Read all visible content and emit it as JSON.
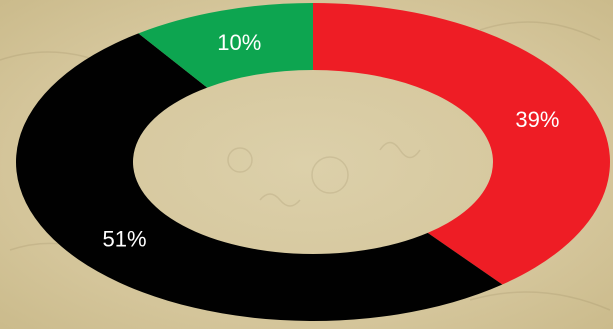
{
  "chart_data": {
    "type": "pie",
    "style": "donut",
    "categories": [
      "",
      "",
      ""
    ],
    "values": [
      39,
      51,
      10
    ],
    "labels": [
      "39%",
      "51%",
      "10%"
    ],
    "colors": [
      "#ee1d25",
      "#010101",
      "#0da550"
    ],
    "title": "",
    "legend": "none"
  },
  "background": {
    "color": "#d8c9a0"
  }
}
